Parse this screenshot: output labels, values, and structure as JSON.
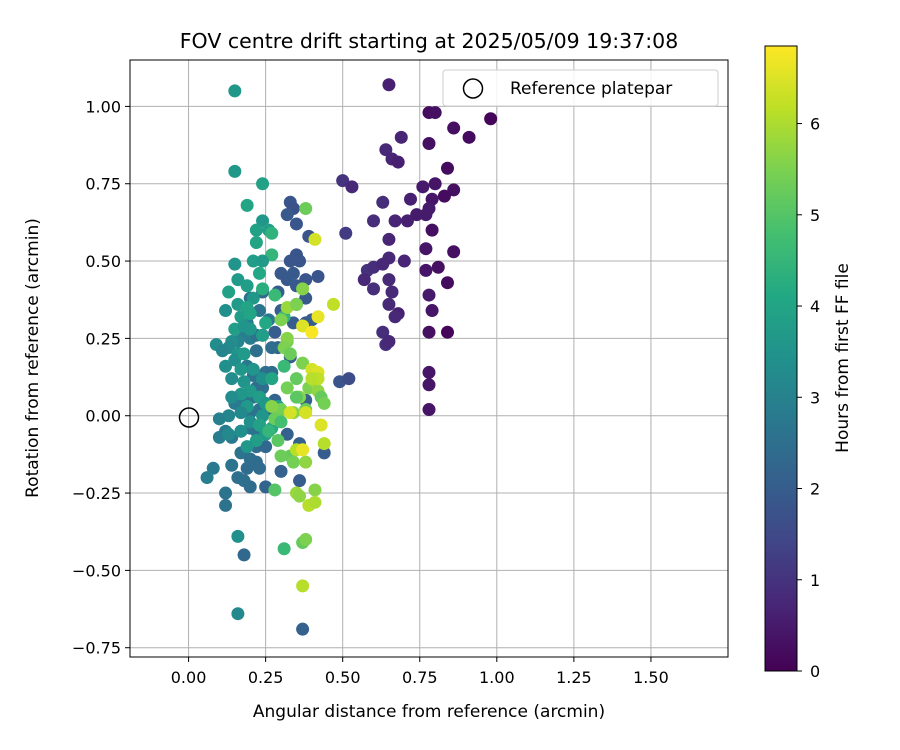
{
  "chart_data": {
    "type": "scatter",
    "title": "FOV centre drift starting at 2025/05/09 19:37:08",
    "xlabel": "Angular distance from reference (arcmin)",
    "ylabel": "Rotation from reference (arcmin)",
    "xlim": [
      -0.19,
      1.75
    ],
    "ylim": [
      -0.78,
      1.15
    ],
    "xticks": [
      0.0,
      0.25,
      0.5,
      0.75,
      1.0,
      1.25,
      1.5
    ],
    "xtick_labels": [
      "0.00",
      "0.25",
      "0.50",
      "0.75",
      "1.00",
      "1.25",
      "1.50"
    ],
    "yticks": [
      -0.75,
      -0.5,
      -0.25,
      0.0,
      0.25,
      0.5,
      0.75,
      1.0
    ],
    "ytick_labels": [
      "−0.75",
      "−0.50",
      "−0.25",
      "0.00",
      "0.25",
      "0.50",
      "0.75",
      "1.00"
    ],
    "grid": true,
    "legend": {
      "placement": "top-right",
      "label": "Reference platepar",
      "marker": "open-circle"
    },
    "reference_point": {
      "x": 0.0,
      "y": 0.0
    },
    "colorbar": {
      "label": "Hours from first FF file",
      "colormap": "viridis",
      "range": [
        0,
        6.85
      ],
      "ticks": [
        0,
        1,
        2,
        3,
        4,
        5,
        6
      ],
      "tick_labels": [
        "0",
        "1",
        "2",
        "3",
        "4",
        "5",
        "6"
      ]
    },
    "points": [
      [
        0.65,
        1.07,
        0.6
      ],
      [
        0.78,
        0.98,
        0.2
      ],
      [
        0.8,
        0.98,
        0.3
      ],
      [
        0.98,
        0.96,
        0.1
      ],
      [
        0.86,
        0.93,
        0.3
      ],
      [
        0.91,
        0.9,
        0.2
      ],
      [
        0.69,
        0.9,
        0.7
      ],
      [
        0.64,
        0.86,
        0.8
      ],
      [
        0.66,
        0.83,
        0.7
      ],
      [
        0.78,
        0.88,
        0.3
      ],
      [
        0.68,
        0.82,
        0.6
      ],
      [
        0.5,
        0.76,
        1.0
      ],
      [
        0.53,
        0.74,
        0.8
      ],
      [
        0.76,
        0.74,
        0.5
      ],
      [
        0.86,
        0.73,
        0.3
      ],
      [
        0.84,
        0.8,
        0.2
      ],
      [
        0.8,
        0.75,
        0.4
      ],
      [
        0.83,
        0.71,
        0.2
      ],
      [
        0.79,
        0.7,
        0.4
      ],
      [
        0.78,
        0.67,
        0.5
      ],
      [
        0.63,
        0.69,
        0.9
      ],
      [
        0.72,
        0.7,
        0.6
      ],
      [
        0.77,
        0.65,
        0.5
      ],
      [
        0.6,
        0.63,
        0.9
      ],
      [
        0.67,
        0.63,
        0.7
      ],
      [
        0.71,
        0.63,
        0.6
      ],
      [
        0.74,
        0.65,
        0.5
      ],
      [
        0.79,
        0.6,
        0.3
      ],
      [
        0.51,
        0.59,
        1.2
      ],
      [
        0.65,
        0.57,
        0.7
      ],
      [
        0.77,
        0.54,
        0.4
      ],
      [
        0.86,
        0.53,
        0.3
      ],
      [
        0.65,
        0.51,
        0.8
      ],
      [
        0.7,
        0.5,
        0.7
      ],
      [
        0.58,
        0.47,
        1.0
      ],
      [
        0.6,
        0.48,
        0.9
      ],
      [
        0.63,
        0.49,
        0.8
      ],
      [
        0.77,
        0.47,
        0.4
      ],
      [
        0.81,
        0.48,
        0.3
      ],
      [
        0.57,
        0.44,
        0.8
      ],
      [
        0.65,
        0.44,
        0.8
      ],
      [
        0.6,
        0.41,
        0.9
      ],
      [
        0.84,
        0.43,
        0.2
      ],
      [
        0.66,
        0.4,
        0.8
      ],
      [
        0.78,
        0.39,
        0.5
      ],
      [
        0.65,
        0.36,
        0.8
      ],
      [
        0.68,
        0.33,
        0.6
      ],
      [
        0.79,
        0.34,
        0.4
      ],
      [
        0.67,
        0.32,
        0.8
      ],
      [
        0.63,
        0.27,
        0.9
      ],
      [
        0.78,
        0.27,
        0.3
      ],
      [
        0.84,
        0.27,
        0.1
      ],
      [
        0.64,
        0.23,
        0.9
      ],
      [
        0.65,
        0.24,
        0.8
      ],
      [
        0.78,
        0.14,
        0.4
      ],
      [
        0.78,
        0.1,
        0.4
      ],
      [
        0.78,
        0.02,
        0.4
      ],
      [
        0.33,
        0.69,
        1.8
      ],
      [
        0.34,
        0.67,
        1.7
      ],
      [
        0.32,
        0.65,
        1.9
      ],
      [
        0.35,
        0.62,
        1.8
      ],
      [
        0.39,
        0.58,
        1.8
      ],
      [
        0.35,
        0.52,
        1.8
      ],
      [
        0.33,
        0.5,
        1.8
      ],
      [
        0.36,
        0.5,
        1.8
      ],
      [
        0.34,
        0.46,
        1.9
      ],
      [
        0.3,
        0.46,
        1.9
      ],
      [
        0.32,
        0.44,
        1.9
      ],
      [
        0.38,
        0.44,
        1.8
      ],
      [
        0.42,
        0.45,
        1.8
      ],
      [
        0.35,
        0.42,
        1.9
      ],
      [
        0.29,
        0.4,
        2.0
      ],
      [
        0.38,
        0.38,
        1.9
      ],
      [
        0.35,
        0.36,
        1.9
      ],
      [
        0.3,
        0.34,
        2.0
      ],
      [
        0.38,
        0.3,
        1.9
      ],
      [
        0.4,
        0.31,
        2.0
      ],
      [
        0.34,
        0.3,
        2.0
      ],
      [
        0.28,
        0.27,
        2.0
      ],
      [
        0.29,
        0.22,
        2.1
      ],
      [
        0.33,
        0.19,
        2.0
      ],
      [
        0.49,
        0.11,
        1.8
      ],
      [
        0.52,
        0.12,
        1.6
      ],
      [
        0.38,
        0.05,
        2.1
      ],
      [
        0.32,
        -0.06,
        2.1
      ],
      [
        0.36,
        -0.09,
        2.1
      ],
      [
        0.44,
        -0.12,
        2.0
      ],
      [
        0.3,
        -0.18,
        2.1
      ],
      [
        0.36,
        -0.21,
        2.0
      ],
      [
        0.25,
        -0.23,
        2.2
      ],
      [
        0.37,
        -0.69,
        2.1
      ],
      [
        0.24,
        0.4,
        2.3
      ],
      [
        0.2,
        0.38,
        2.5
      ],
      [
        0.23,
        0.34,
        2.6
      ],
      [
        0.26,
        0.31,
        2.7
      ],
      [
        0.19,
        0.3,
        2.8
      ],
      [
        0.18,
        0.27,
        2.9
      ],
      [
        0.16,
        0.24,
        3.1
      ],
      [
        0.2,
        0.25,
        2.9
      ],
      [
        0.22,
        0.26,
        2.6
      ],
      [
        0.24,
        0.26,
        2.5
      ],
      [
        0.27,
        0.22,
        2.4
      ],
      [
        0.22,
        0.21,
        2.5
      ],
      [
        0.19,
        0.16,
        2.7
      ],
      [
        0.21,
        0.13,
        2.6
      ],
      [
        0.25,
        0.14,
        2.5
      ],
      [
        0.27,
        0.14,
        2.4
      ],
      [
        0.22,
        0.09,
        2.5
      ],
      [
        0.24,
        0.09,
        2.5
      ],
      [
        0.21,
        0.06,
        2.6
      ],
      [
        0.18,
        0.05,
        2.7
      ],
      [
        0.15,
        0.04,
        2.8
      ],
      [
        0.2,
        0.01,
        2.6
      ],
      [
        0.23,
        0.02,
        2.6
      ],
      [
        0.26,
        0.02,
        2.3
      ],
      [
        0.28,
        0.05,
        2.2
      ],
      [
        0.2,
        -0.04,
        2.6
      ],
      [
        0.22,
        -0.05,
        2.6
      ],
      [
        0.17,
        -0.05,
        2.6
      ],
      [
        0.14,
        -0.07,
        2.7
      ],
      [
        0.12,
        -0.05,
        2.8
      ],
      [
        0.1,
        -0.07,
        2.9
      ],
      [
        0.22,
        -0.1,
        2.4
      ],
      [
        0.25,
        -0.1,
        2.3
      ],
      [
        0.17,
        -0.12,
        2.6
      ],
      [
        0.2,
        -0.14,
        2.5
      ],
      [
        0.22,
        -0.15,
        2.4
      ],
      [
        0.19,
        -0.17,
        2.4
      ],
      [
        0.23,
        -0.17,
        2.4
      ],
      [
        0.08,
        -0.17,
        2.8
      ],
      [
        0.14,
        -0.16,
        2.6
      ],
      [
        0.18,
        -0.21,
        2.5
      ],
      [
        0.2,
        -0.23,
        2.4
      ],
      [
        0.06,
        -0.2,
        2.9
      ],
      [
        0.12,
        -0.25,
        2.6
      ],
      [
        0.12,
        -0.29,
        2.6
      ],
      [
        0.16,
        -0.2,
        2.5
      ],
      [
        0.18,
        -0.45,
        2.3
      ],
      [
        0.15,
        1.05,
        3.6
      ],
      [
        0.15,
        0.79,
        3.6
      ],
      [
        0.24,
        0.75,
        3.9
      ],
      [
        0.19,
        0.68,
        4.0
      ],
      [
        0.24,
        0.63,
        3.6
      ],
      [
        0.26,
        0.6,
        3.8
      ],
      [
        0.22,
        0.6,
        3.9
      ],
      [
        0.27,
        0.59,
        4.4
      ],
      [
        0.22,
        0.56,
        4.0
      ],
      [
        0.27,
        0.52,
        4.5
      ],
      [
        0.21,
        0.5,
        3.8
      ],
      [
        0.15,
        0.49,
        3.5
      ],
      [
        0.24,
        0.5,
        3.7
      ],
      [
        0.23,
        0.46,
        4.1
      ],
      [
        0.16,
        0.44,
        3.7
      ],
      [
        0.13,
        0.4,
        3.9
      ],
      [
        0.19,
        0.42,
        3.8
      ],
      [
        0.24,
        0.41,
        4.3
      ],
      [
        0.28,
        0.39,
        4.6
      ],
      [
        0.21,
        0.38,
        3.6
      ],
      [
        0.16,
        0.36,
        3.7
      ],
      [
        0.12,
        0.34,
        3.4
      ],
      [
        0.19,
        0.35,
        4.0
      ],
      [
        0.17,
        0.32,
        3.8
      ],
      [
        0.2,
        0.33,
        4.0
      ],
      [
        0.25,
        0.3,
        4.1
      ],
      [
        0.31,
        0.32,
        4.5
      ],
      [
        0.2,
        0.28,
        3.6
      ],
      [
        0.15,
        0.28,
        3.8
      ],
      [
        0.18,
        0.29,
        3.5
      ],
      [
        0.24,
        0.26,
        3.8
      ],
      [
        0.14,
        0.24,
        3.3
      ],
      [
        0.13,
        0.22,
        3.2
      ],
      [
        0.16,
        0.2,
        3.5
      ],
      [
        0.09,
        0.23,
        3.3
      ],
      [
        0.11,
        0.21,
        3.1
      ],
      [
        0.15,
        0.18,
        3.4
      ],
      [
        0.18,
        0.2,
        3.7
      ],
      [
        0.12,
        0.16,
        3.4
      ],
      [
        0.17,
        0.15,
        3.6
      ],
      [
        0.21,
        0.15,
        3.5
      ],
      [
        0.14,
        0.12,
        3.3
      ],
      [
        0.18,
        0.11,
        3.5
      ],
      [
        0.24,
        0.12,
        3.4
      ],
      [
        0.27,
        0.12,
        4.0
      ],
      [
        0.2,
        0.08,
        3.7
      ],
      [
        0.17,
        0.07,
        3.6
      ],
      [
        0.23,
        0.06,
        3.8
      ],
      [
        0.14,
        0.06,
        3.3
      ],
      [
        0.19,
        0.03,
        3.7
      ],
      [
        0.25,
        0.04,
        3.6
      ],
      [
        0.29,
        0.03,
        3.9
      ],
      [
        0.17,
        0.01,
        3.2
      ],
      [
        0.13,
        0.0,
        3.1
      ],
      [
        0.24,
        0.0,
        3.5
      ],
      [
        0.1,
        -0.01,
        3.0
      ],
      [
        0.2,
        -0.02,
        3.4
      ],
      [
        0.27,
        -0.04,
        4.1
      ],
      [
        0.23,
        -0.03,
        3.9
      ],
      [
        0.25,
        -0.06,
        3.7
      ],
      [
        0.17,
        -0.05,
        3.4
      ],
      [
        0.13,
        -0.06,
        3.2
      ],
      [
        0.22,
        -0.08,
        3.8
      ],
      [
        0.19,
        -0.1,
        3.6
      ],
      [
        0.16,
        -0.39,
        3.4
      ],
      [
        0.16,
        -0.64,
        3.2
      ],
      [
        0.3,
        0.31,
        5.5
      ],
      [
        0.32,
        0.35,
        5.8
      ],
      [
        0.32,
        0.24,
        5.4
      ],
      [
        0.32,
        0.25,
        5.6
      ],
      [
        0.31,
        0.22,
        5.5
      ],
      [
        0.33,
        0.2,
        5.3
      ],
      [
        0.37,
        0.17,
        5.5
      ],
      [
        0.31,
        0.16,
        4.6
      ],
      [
        0.35,
        0.12,
        5.2
      ],
      [
        0.32,
        0.09,
        5.4
      ],
      [
        0.36,
        0.06,
        5.6
      ],
      [
        0.35,
        0.06,
        5.1
      ],
      [
        0.39,
        0.09,
        5.5
      ],
      [
        0.41,
        0.11,
        5.8
      ],
      [
        0.42,
        0.08,
        5.7
      ],
      [
        0.43,
        0.06,
        5.2
      ],
      [
        0.44,
        0.04,
        5.4
      ],
      [
        0.3,
        0.02,
        5.4
      ],
      [
        0.38,
        0.02,
        5.3
      ],
      [
        0.34,
        0.01,
        5.6
      ],
      [
        0.28,
        -0.01,
        5.3
      ],
      [
        0.3,
        -0.02,
        4.8
      ],
      [
        0.43,
        -0.03,
        6.5
      ],
      [
        0.26,
        -0.05,
        4.5
      ],
      [
        0.44,
        -0.09,
        6.1
      ],
      [
        0.29,
        -0.08,
        5.1
      ],
      [
        0.33,
        -0.13,
        5.2
      ],
      [
        0.34,
        -0.15,
        5.4
      ],
      [
        0.35,
        -0.11,
        6.1
      ],
      [
        0.38,
        -0.15,
        5.7
      ],
      [
        0.41,
        -0.24,
        5.6
      ],
      [
        0.35,
        -0.25,
        5.8
      ],
      [
        0.36,
        -0.26,
        5.7
      ],
      [
        0.39,
        -0.29,
        6.1
      ],
      [
        0.41,
        -0.28,
        6.0
      ],
      [
        0.31,
        -0.43,
        4.6
      ],
      [
        0.37,
        -0.41,
        5.2
      ],
      [
        0.37,
        -0.55,
        6.1
      ],
      [
        0.35,
        0.36,
        5.5
      ],
      [
        0.37,
        0.29,
        6.5
      ],
      [
        0.42,
        0.32,
        6.6
      ],
      [
        0.4,
        0.27,
        6.8
      ],
      [
        0.38,
        0.67,
        5.3
      ],
      [
        0.37,
        0.41,
        5.6
      ],
      [
        0.41,
        0.57,
        6.4
      ],
      [
        0.47,
        0.36,
        6.2
      ],
      [
        0.4,
        0.15,
        6.4
      ],
      [
        0.42,
        0.14,
        6.5
      ],
      [
        0.42,
        0.12,
        6.2
      ],
      [
        0.4,
        0.12,
        6.1
      ],
      [
        0.33,
        0.01,
        6.4
      ],
      [
        0.37,
        -0.11,
        6.6
      ],
      [
        0.38,
        0.01,
        6.4
      ],
      [
        0.27,
        0.03,
        5.6
      ],
      [
        0.3,
        -0.13,
        5.3
      ],
      [
        0.28,
        -0.24,
        5.0
      ],
      [
        0.38,
        -0.4,
        5.5
      ]
    ]
  }
}
